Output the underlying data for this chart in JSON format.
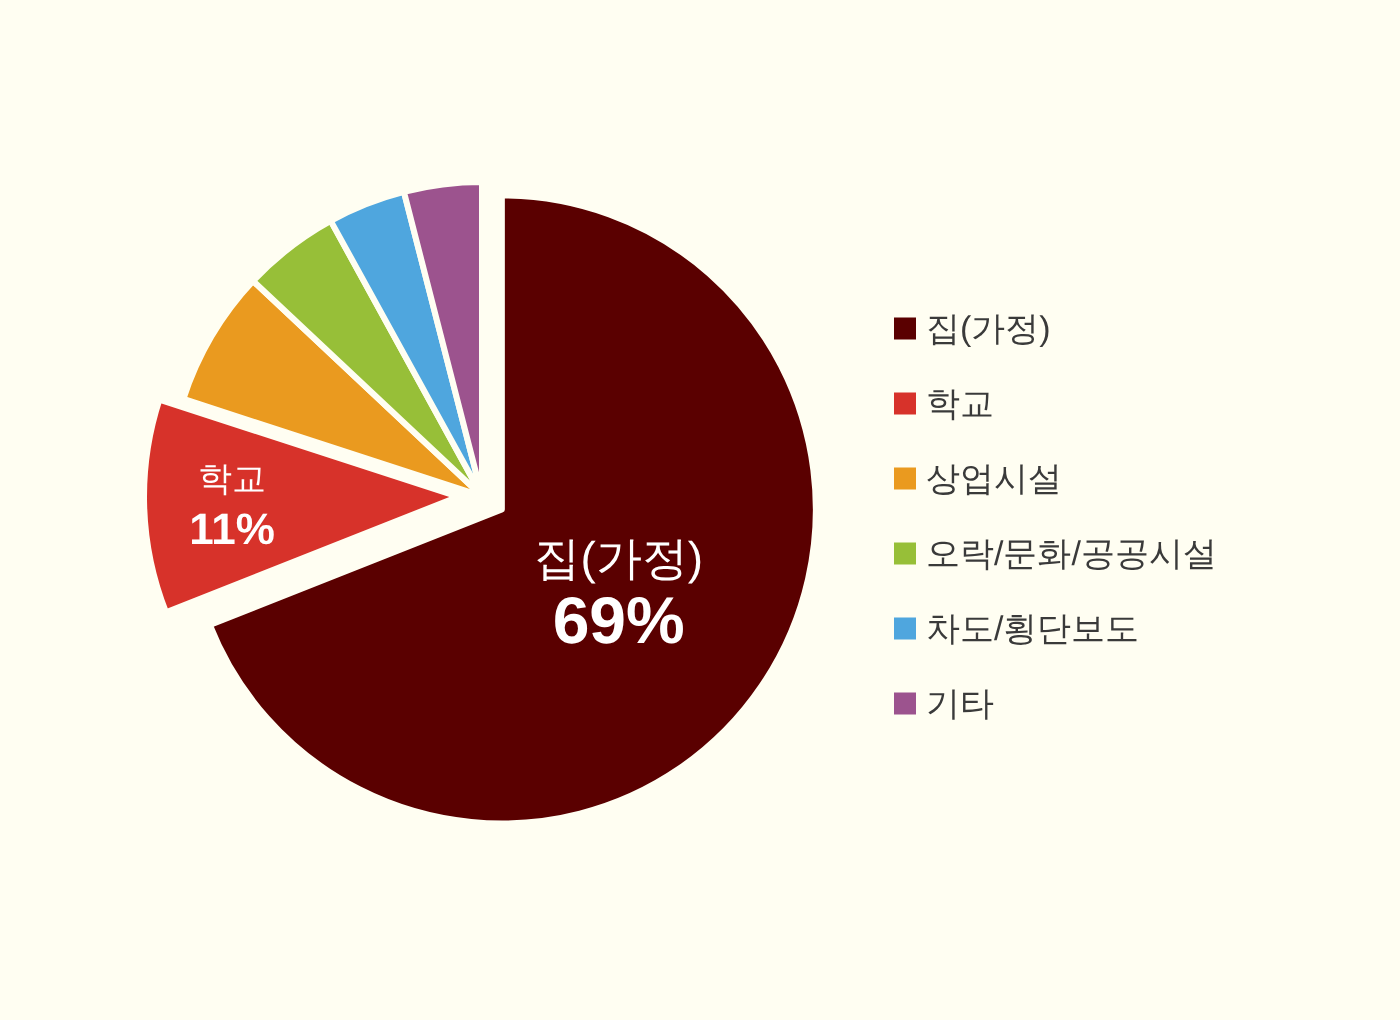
{
  "chart_data": {
    "type": "pie",
    "categories": [
      "집(가정)",
      "학교",
      "상업시설",
      "오락/문화/공공시설",
      "차도/횡단보도",
      "기타"
    ],
    "values": [
      69,
      11,
      7,
      5,
      4,
      4
    ],
    "colors": [
      "#5a0000",
      "#d7322a",
      "#ea9a1f",
      "#97bf38",
      "#4fa6de",
      "#9c538e"
    ],
    "value_labels": [
      "69%",
      "11%",
      null,
      null,
      null,
      null
    ],
    "legend": "right"
  }
}
